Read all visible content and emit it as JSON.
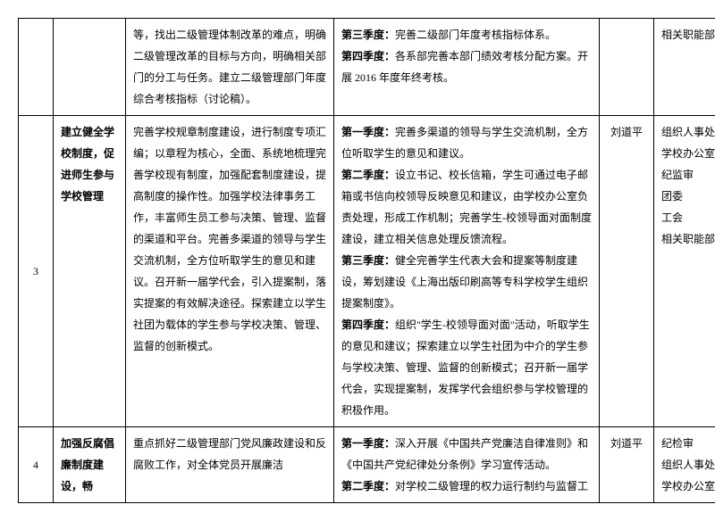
{
  "rows": [
    {
      "num": "",
      "title": "",
      "desc": "等，找出二级管理体制改革的难点，明确二级管理改革的目标与方向，明确相关部门的分工与任务。建立二级管理部门年度综合考核指标（讨论稿）。",
      "q3_label": "第三季度：",
      "q3_text": "完善二级部门年度考核指标体系。",
      "q4_label": "第四季度：",
      "q4_text": "各系部完善本部门绩效考核分配方案。开展 2016 年度年终考核。",
      "person": "",
      "dept": "相关职能部门"
    },
    {
      "num": "3",
      "title": "建立健全学校制度，促进师生参与学校管理",
      "desc": "完善学校规章制度建设，进行制度专项汇编；以章程为核心，全面、系统地梳理完善学校现有制度，加强配套制度建设，提高制度的操作性。加强学校法律事务工作，丰富师生员工参与决策、管理、监督的渠道和平台。完善多渠道的领导与学生交流机制，全方位听取学生的意见和建议。召开新一届学代会，引入提案制，落实提案的有效解决途径。探索建立以学生社团为载体的学生参与学校决策、管理、监督的创新模式。",
      "q1_label": "第一季度：",
      "q1_text": "完善多渠道的领导与学生交流机制，全方位听取学生的意见和建议。",
      "q2_label": "第二季度：",
      "q2_text": "设立书记、校长信箱，学生可通过电子邮箱或书信向校领导反映意见和建议，由学校办公室负责处理，形成工作机制；完善学生-校领导面对面制度建设，建立相关信息处理反馈流程。",
      "q3_label": "第三季度：",
      "q3_text": "健全完善学生代表大会和提案等制度建设，筹划建设《上海出版印刷高等专科学校学生组织提案制度》。",
      "q4_label": "第四季度：",
      "q4_text": "组织\"学生-校领导面对面\"活动，听取学生的意见和建议；探索建立以学生社团为中介的学生参与学校决策、管理、监督的创新模式；召开新一届学代会，实现提案制，发挥学代会组织参与学校管理的积极作用。",
      "person": "刘道平",
      "dept": "组织人事处\n学校办公室\n纪监审\n团委\n工会\n相关职能部门"
    },
    {
      "num": "4",
      "title": "加强反腐倡廉制度建设，畅",
      "desc": "重点抓好二级管理部门党风廉政建设和反腐败工作，对全体党员开展廉洁",
      "q1_label": "第一季度：",
      "q1_text": "深入开展《中国共产党廉洁自律准则》和《中国共产党纪律处分条例》学习宣传活动。",
      "q2_label": "第二季度：",
      "q2_text": "对学校二级管理的权力运行制约与监督工",
      "person": "刘道平",
      "dept": "纪检审\n组织人事处\n学校办公室"
    }
  ]
}
